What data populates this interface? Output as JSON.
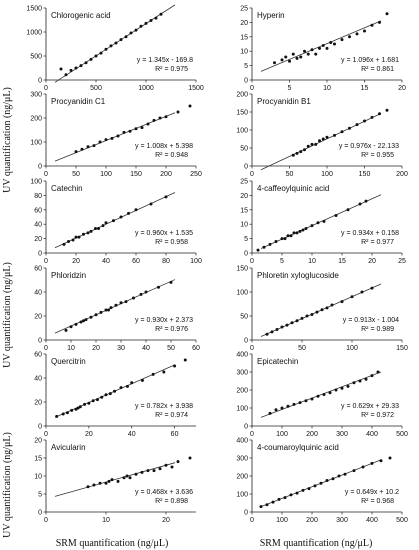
{
  "figure": {
    "ylabel": "UV quantification (ng/μL)",
    "xlabel": "SRM quantification (ng/μL)"
  },
  "chart_data": [
    {
      "type": "scatter",
      "title": "Chlorogenic acid",
      "xlim": [
        0,
        1500
      ],
      "ylim": [
        0,
        1500
      ],
      "xticks": [
        0,
        500,
        1000,
        1500
      ],
      "yticks": [
        0,
        500,
        1000,
        1500
      ],
      "equation": "y = 1.345x - 169.8",
      "r2": "R² = 0.975",
      "slope": 1.345,
      "intercept": -169.8,
      "x": [
        150,
        200,
        250,
        300,
        350,
        400,
        450,
        500,
        550,
        600,
        650,
        700,
        750,
        800,
        850,
        900,
        950,
        1000,
        1050,
        1100,
        1150
      ],
      "y": [
        230,
        110,
        200,
        250,
        300,
        360,
        430,
        500,
        560,
        640,
        710,
        770,
        840,
        900,
        980,
        1040,
        1120,
        1180,
        1240,
        1290,
        1370
      ]
    },
    {
      "type": "scatter",
      "title": "Hyperin",
      "xlim": [
        0,
        20
      ],
      "ylim": [
        0,
        25
      ],
      "xticks": [
        0,
        5,
        10,
        15,
        20
      ],
      "yticks": [
        0,
        5,
        10,
        15,
        20,
        25
      ],
      "equation": "y = 1.096x + 1.681",
      "r2": "R² = 0.861",
      "slope": 1.096,
      "intercept": 1.681,
      "x": [
        3,
        4,
        4.5,
        5,
        5.5,
        6,
        6.5,
        7,
        7.5,
        8,
        8.5,
        9,
        9.5,
        10,
        10.5,
        11,
        12,
        13,
        14,
        15,
        16,
        17,
        18
      ],
      "y": [
        6,
        7,
        8,
        6.5,
        9,
        7.5,
        8,
        10,
        9,
        10.5,
        9,
        11,
        12,
        11,
        13,
        12.5,
        14,
        15,
        16,
        17,
        19,
        20,
        23
      ]
    },
    {
      "type": "scatter",
      "title": "Procyanidin C1",
      "xlim": [
        0,
        250
      ],
      "ylim": [
        0,
        300
      ],
      "xticks": [
        0,
        50,
        100,
        150,
        200,
        250
      ],
      "yticks": [
        0,
        100,
        200,
        300
      ],
      "equation": "y = 1.008x + 5.398",
      "r2": "R² = 0.948",
      "slope": 1.008,
      "intercept": 5.398,
      "x": [
        50,
        60,
        70,
        80,
        90,
        100,
        110,
        120,
        130,
        140,
        150,
        160,
        170,
        180,
        190,
        200,
        220,
        240
      ],
      "y": [
        60,
        70,
        80,
        85,
        100,
        110,
        115,
        125,
        140,
        145,
        155,
        160,
        175,
        190,
        200,
        205,
        225,
        250
      ]
    },
    {
      "type": "scatter",
      "title": "Procyanidin B1",
      "xlim": [
        0,
        200
      ],
      "ylim": [
        0,
        200
      ],
      "xticks": [
        0,
        50,
        100,
        150,
        200
      ],
      "yticks": [
        0,
        50,
        100,
        150,
        200
      ],
      "equation": "y = 0.976x - 22.133",
      "r2": "R² = 0.955",
      "slope": 0.976,
      "intercept": -22.133,
      "x": [
        55,
        60,
        65,
        70,
        75,
        80,
        85,
        90,
        95,
        100,
        110,
        120,
        130,
        140,
        150,
        160,
        170,
        180
      ],
      "y": [
        30,
        35,
        40,
        45,
        55,
        60,
        60,
        70,
        75,
        80,
        85,
        95,
        105,
        115,
        125,
        135,
        145,
        155
      ]
    },
    {
      "type": "scatter",
      "title": "Catechin",
      "xlim": [
        0,
        100
      ],
      "ylim": [
        0,
        100
      ],
      "xticks": [
        0,
        20,
        40,
        60,
        80,
        100
      ],
      "yticks": [
        0,
        20,
        40,
        60,
        80,
        100
      ],
      "equation": "y = 0.960x + 1.535",
      "r2": "R² = 0.958",
      "slope": 0.96,
      "intercept": 1.535,
      "x": [
        12,
        15,
        18,
        20,
        22,
        25,
        28,
        30,
        33,
        35,
        38,
        40,
        45,
        50,
        55,
        60,
        70,
        80
      ],
      "y": [
        12,
        16,
        18,
        22,
        22,
        26,
        28,
        30,
        34,
        34,
        38,
        42,
        45,
        50,
        55,
        60,
        68,
        78
      ]
    },
    {
      "type": "scatter",
      "title": "4-caffeoylquinic acid",
      "xlim": [
        0,
        25
      ],
      "ylim": [
        0,
        25
      ],
      "xticks": [
        0,
        5,
        10,
        15,
        20,
        25
      ],
      "yticks": [
        0,
        5,
        10,
        15,
        20,
        25
      ],
      "equation": "y = 0.934x + 0.158",
      "r2": "R² = 0.977",
      "slope": 0.934,
      "intercept": 0.158,
      "x": [
        1,
        2,
        3,
        4,
        5,
        5.5,
        6,
        6.5,
        7,
        7.5,
        8,
        8.5,
        9,
        10,
        11,
        12,
        14,
        16,
        18,
        19
      ],
      "y": [
        1,
        2,
        3,
        4,
        5,
        5,
        6,
        6,
        7,
        7,
        7.5,
        8,
        8.5,
        9.5,
        10.5,
        11,
        13,
        15,
        17,
        18
      ]
    },
    {
      "type": "scatter",
      "title": "Phloridzin",
      "xlim": [
        0,
        60
      ],
      "ylim": [
        0,
        60
      ],
      "xticks": [
        0,
        10,
        20,
        30,
        40,
        50,
        60
      ],
      "yticks": [
        0,
        20,
        40,
        60
      ],
      "equation": "y = 0.930x + 2.373",
      "r2": "R² = 0.976",
      "slope": 0.93,
      "intercept": 2.373,
      "x": [
        8,
        10,
        12,
        14,
        15,
        16,
        18,
        20,
        22,
        24,
        25,
        26,
        28,
        30,
        32,
        35,
        38,
        40,
        45,
        50
      ],
      "y": [
        8,
        11,
        13,
        15,
        16,
        17,
        19,
        21,
        23,
        25,
        25,
        27,
        29,
        31,
        32,
        35,
        38,
        40,
        44,
        48
      ]
    },
    {
      "type": "scatter",
      "title": "Phloretin xyloglucoside",
      "xlim": [
        0,
        150
      ],
      "ylim": [
        0,
        150
      ],
      "xticks": [
        0,
        50,
        100,
        150
      ],
      "yticks": [
        0,
        50,
        100,
        150
      ],
      "equation": "y = 0.913x - 1.004",
      "r2": "R² = 0.989",
      "slope": 0.913,
      "intercept": -1.004,
      "x": [
        15,
        20,
        25,
        30,
        35,
        40,
        45,
        50,
        55,
        60,
        65,
        70,
        75,
        80,
        90,
        100,
        110,
        120
      ],
      "y": [
        12,
        17,
        22,
        27,
        31,
        36,
        40,
        45,
        50,
        53,
        58,
        63,
        67,
        73,
        80,
        90,
        100,
        108
      ]
    },
    {
      "type": "scatter",
      "title": "Quercitrin",
      "xlim": [
        0,
        70
      ],
      "ylim": [
        0,
        60
      ],
      "xticks": [
        0,
        20,
        40,
        60
      ],
      "yticks": [
        0,
        20,
        40,
        60
      ],
      "equation": "y = 0.782x + 3.938",
      "r2": "R² = 0.974",
      "slope": 0.782,
      "intercept": 3.938,
      "x": [
        5,
        8,
        10,
        12,
        14,
        15,
        16,
        18,
        20,
        22,
        24,
        26,
        28,
        30,
        32,
        35,
        38,
        40,
        45,
        50,
        55,
        60,
        65
      ],
      "y": [
        8,
        10,
        11,
        13,
        14,
        15,
        16,
        18,
        19,
        21,
        22,
        24,
        26,
        27,
        29,
        32,
        33,
        36,
        38,
        43,
        45,
        50,
        55
      ]
    },
    {
      "type": "scatter",
      "title": "Epicatechin",
      "xlim": [
        0,
        500
      ],
      "ylim": [
        0,
        400
      ],
      "xticks": [
        0,
        100,
        200,
        300,
        400,
        500
      ],
      "yticks": [
        0,
        100,
        200,
        300,
        400
      ],
      "equation": "y = 0.629x + 29.33",
      "r2": "R² = 0.972",
      "slope": 0.629,
      "intercept": 29.33,
      "x": [
        60,
        80,
        100,
        120,
        140,
        160,
        180,
        200,
        220,
        240,
        260,
        280,
        300,
        320,
        340,
        360,
        380,
        400,
        420
      ],
      "y": [
        70,
        90,
        100,
        110,
        120,
        130,
        140,
        150,
        165,
        175,
        185,
        200,
        210,
        220,
        240,
        250,
        260,
        280,
        300
      ]
    },
    {
      "type": "scatter",
      "title": "Avicularin",
      "xlim": [
        0,
        25
      ],
      "ylim": [
        0,
        20
      ],
      "xticks": [
        0,
        10,
        20
      ],
      "yticks": [
        0,
        5,
        10,
        15,
        20
      ],
      "equation": "y = 0.468x + 3.636",
      "r2": "R² = 0.898",
      "slope": 0.468,
      "intercept": 3.636,
      "x": [
        7,
        8,
        9,
        10,
        10.5,
        11,
        12,
        13,
        13.5,
        14,
        15,
        16,
        17,
        18,
        19,
        20,
        21,
        22,
        24
      ],
      "y": [
        7,
        7.5,
        8,
        8,
        8.5,
        9,
        8.5,
        9.5,
        10,
        9.5,
        10.5,
        11,
        11.5,
        11.5,
        12,
        13,
        12.5,
        14,
        15
      ]
    },
    {
      "type": "scatter",
      "title": "4-coumaroylquinic acid",
      "xlim": [
        0,
        500
      ],
      "ylim": [
        0,
        400
      ],
      "xticks": [
        0,
        100,
        200,
        300,
        400,
        500
      ],
      "yticks": [
        0,
        100,
        200,
        300,
        400
      ],
      "equation": "y = 0.649x + 10.2",
      "r2": "R² = 0.968",
      "slope": 0.649,
      "intercept": 10.2,
      "x": [
        30,
        50,
        70,
        90,
        110,
        130,
        150,
        170,
        190,
        210,
        230,
        250,
        270,
        290,
        310,
        340,
        370,
        400,
        430,
        460
      ],
      "y": [
        30,
        40,
        55,
        70,
        80,
        95,
        105,
        120,
        130,
        145,
        160,
        175,
        185,
        200,
        210,
        230,
        250,
        270,
        285,
        300
      ]
    }
  ]
}
